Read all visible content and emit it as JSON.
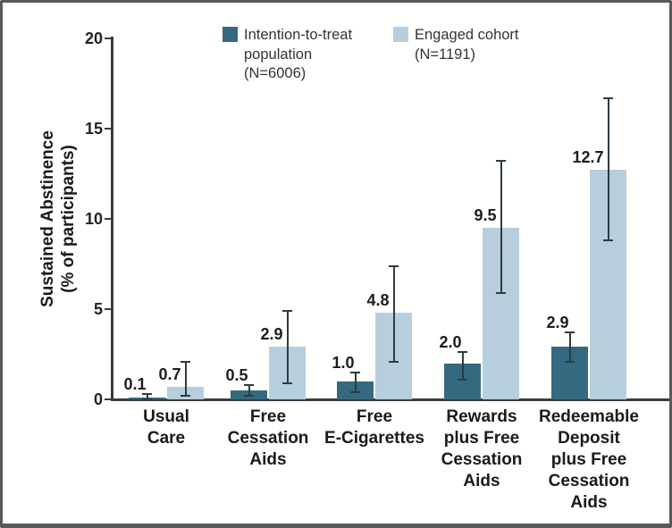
{
  "chart_data": {
    "type": "bar",
    "title": "",
    "ylabel_lines": [
      "Sustained Abstinence",
      "(% of participants)"
    ],
    "xlabel": "",
    "ylim": [
      0,
      20
    ],
    "yticks": [
      0,
      5,
      10,
      15,
      20
    ],
    "grid": false,
    "legend_position": "top",
    "background_color": "#fffffe",
    "axis_color": "#3b3b3b",
    "errorbar_color": "#2e3b42",
    "frame_border_color": "#58595b",
    "categories": [
      [
        "Usual",
        "Care"
      ],
      [
        "Free",
        "Cessation",
        "Aids"
      ],
      [
        "Free",
        "E-Cigarettes"
      ],
      [
        "Rewards",
        "plus Free",
        "Cessation",
        "Aids"
      ],
      [
        "Redeemable",
        "Deposit",
        "plus Free",
        "Cessation",
        "Aids"
      ]
    ],
    "series": [
      {
        "name": "Intention-to-treat population (N=6006)",
        "legend_lines": [
          "Intention-to-treat",
          "population",
          "(N=6006)"
        ],
        "color": "#35697F",
        "values": [
          0.1,
          0.5,
          1.0,
          2.0,
          2.9
        ],
        "labels": [
          "0.1",
          "0.5",
          "1.0",
          "2.0",
          "2.9"
        ],
        "err_low": [
          0.0,
          0.2,
          0.4,
          1.1,
          2.1
        ],
        "err_high": [
          0.3,
          0.8,
          1.5,
          2.6,
          3.7
        ]
      },
      {
        "name": "Engaged cohort (N=1191)",
        "legend_lines": [
          "Engaged cohort",
          "(N=1191)"
        ],
        "color": "#B7CFDC",
        "values": [
          0.7,
          2.9,
          4.8,
          9.5,
          12.7
        ],
        "labels": [
          "0.7",
          "2.9",
          "4.8",
          "9.5",
          "12.7"
        ],
        "err_low": [
          0.2,
          0.9,
          2.1,
          5.9,
          8.8
        ],
        "err_high": [
          2.1,
          4.9,
          7.4,
          13.2,
          16.7
        ]
      }
    ]
  }
}
